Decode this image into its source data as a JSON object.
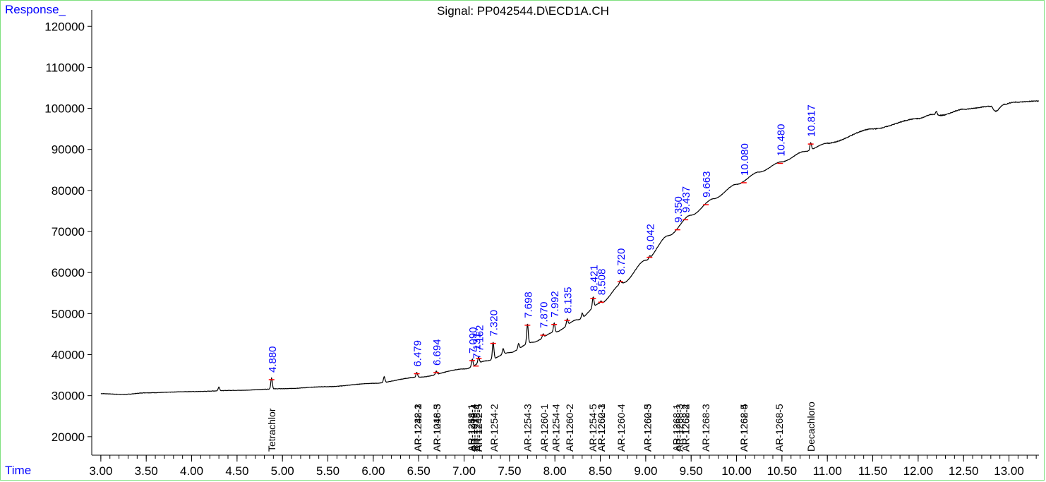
{
  "chart_data": {
    "type": "line",
    "title": "Signal: PP042544.D\\ECD1A.CH",
    "ylabel": "Response_",
    "xlabel": "Time",
    "xlim": [
      2.9,
      13.33
    ],
    "ylim": [
      15500,
      124000
    ],
    "y_ticks": [
      20000,
      30000,
      40000,
      50000,
      60000,
      70000,
      80000,
      90000,
      100000,
      110000,
      120000
    ],
    "x_ticks": [
      3.0,
      3.5,
      4.0,
      4.5,
      5.0,
      5.5,
      6.0,
      6.5,
      7.0,
      7.5,
      8.0,
      8.5,
      9.0,
      9.5,
      10.0,
      10.5,
      11.0,
      11.5,
      12.0,
      12.5,
      13.0
    ],
    "x_tick_labels": [
      "3.00",
      "3.50",
      "4.00",
      "4.50",
      "5.00",
      "5.50",
      "6.00",
      "6.50",
      "7.00",
      "7.50",
      "8.00",
      "8.50",
      "9.00",
      "9.50",
      "10.00",
      "10.50",
      "11.00",
      "11.50",
      "12.00",
      "12.50",
      "13.00"
    ],
    "baseline": {
      "x": [
        3.0,
        3.25,
        3.5,
        4.0,
        4.5,
        5.0,
        5.5,
        6.0,
        6.5,
        7.0,
        7.25,
        7.5,
        7.75,
        8.0,
        8.25,
        8.5,
        8.75,
        9.0,
        9.25,
        9.5,
        9.75,
        10.0,
        10.25,
        10.5,
        10.75,
        11.0,
        11.5,
        12.0,
        12.15,
        12.25,
        12.5,
        12.8,
        12.85,
        12.95,
        13.05,
        13.33
      ],
      "y": [
        30500,
        30300,
        30700,
        31000,
        31300,
        31700,
        32200,
        33000,
        34500,
        36500,
        38500,
        40500,
        43000,
        45500,
        48500,
        52500,
        57500,
        63000,
        69000,
        74000,
        78000,
        81500,
        84500,
        87000,
        89500,
        91500,
        95000,
        97500,
        98500,
        98300,
        99800,
        100500,
        99300,
        101000,
        101500,
        101800
      ]
    },
    "peaks": [
      {
        "x": 4.3,
        "h": 900
      },
      {
        "x": 4.88,
        "h": 2600
      },
      {
        "x": 6.12,
        "h": 1400
      },
      {
        "x": 6.479,
        "h": 1200
      },
      {
        "x": 6.694,
        "h": 800
      },
      {
        "x": 7.09,
        "h": 1800
      },
      {
        "x": 7.16,
        "h": 1500
      },
      {
        "x": 7.32,
        "h": 4200
      },
      {
        "x": 7.43,
        "h": 1400
      },
      {
        "x": 7.6,
        "h": 1300
      },
      {
        "x": 7.698,
        "h": 4800
      },
      {
        "x": 7.87,
        "h": 900
      },
      {
        "x": 7.992,
        "h": 2200
      },
      {
        "x": 8.135,
        "h": 1500
      },
      {
        "x": 8.3,
        "h": 1200
      },
      {
        "x": 8.421,
        "h": 2500
      },
      {
        "x": 8.508,
        "h": 600
      },
      {
        "x": 8.72,
        "h": 800
      },
      {
        "x": 9.042,
        "h": 600
      },
      {
        "x": 10.817,
        "h": 1800
      },
      {
        "x": 12.2,
        "h": 900
      }
    ],
    "rt_labels": [
      {
        "x": 4.88,
        "label": "4.880"
      },
      {
        "x": 6.479,
        "label": "6.479"
      },
      {
        "x": 6.694,
        "label": "6.694"
      },
      {
        "x": 7.09,
        "label": "7.090"
      },
      {
        "x": 7.13,
        "label": "7.131"
      },
      {
        "x": 7.162,
        "label": "7.162"
      },
      {
        "x": 7.32,
        "label": "7.320"
      },
      {
        "x": 7.698,
        "label": "7.698"
      },
      {
        "x": 7.87,
        "label": "7.870"
      },
      {
        "x": 7.992,
        "label": "7.992"
      },
      {
        "x": 8.135,
        "label": "8.135"
      },
      {
        "x": 8.421,
        "label": "8.421"
      },
      {
        "x": 8.508,
        "label": "8.508"
      },
      {
        "x": 8.72,
        "label": "8.720"
      },
      {
        "x": 9.042,
        "label": "9.042"
      },
      {
        "x": 9.35,
        "label": "9.350"
      },
      {
        "x": 9.437,
        "label": "9.437"
      },
      {
        "x": 9.663,
        "label": "9.663"
      },
      {
        "x": 10.08,
        "label": "10.080"
      },
      {
        "x": 10.48,
        "label": "10.480"
      },
      {
        "x": 10.817,
        "label": "10.817"
      }
    ],
    "compound_labels": [
      {
        "x": 4.88,
        "label": "Tetrachlor"
      },
      {
        "x": 6.49,
        "label": "AR-1232-1"
      },
      {
        "x": 6.49,
        "label": "AR-1242-2"
      },
      {
        "x": 6.49,
        "label": "AR-1248-3"
      },
      {
        "x": 6.7,
        "label": "AR-1016-3"
      },
      {
        "x": 6.7,
        "label": "AR-1248-5"
      },
      {
        "x": 7.08,
        "label": "AR-1254-1"
      },
      {
        "x": 7.08,
        "label": "AR-1248-1"
      },
      {
        "x": 7.11,
        "label": "AR-1016-4"
      },
      {
        "x": 7.14,
        "label": "AR-1248-4"
      },
      {
        "x": 7.16,
        "label": "AR-1242-5"
      },
      {
        "x": 7.33,
        "label": "AR-1254-2"
      },
      {
        "x": 7.7,
        "label": "AR-1254-3"
      },
      {
        "x": 7.88,
        "label": "AR-1260-1"
      },
      {
        "x": 8.01,
        "label": "AR-1254-4"
      },
      {
        "x": 8.16,
        "label": "AR-1260-2"
      },
      {
        "x": 8.42,
        "label": "AR-1254-5"
      },
      {
        "x": 8.51,
        "label": "AR-1260-3"
      },
      {
        "x": 8.51,
        "label": "AR-1262-1"
      },
      {
        "x": 8.73,
        "label": "AR-1260-4"
      },
      {
        "x": 9.02,
        "label": "AR-1260-5"
      },
      {
        "x": 9.02,
        "label": "AR-1262-3"
      },
      {
        "x": 9.34,
        "label": "AR-1268-1"
      },
      {
        "x": 9.37,
        "label": "AR-1268-3"
      },
      {
        "x": 9.44,
        "label": "AR-1268-2"
      },
      {
        "x": 9.44,
        "label": "AR-1262-4"
      },
      {
        "x": 9.66,
        "label": "AR-1268-3"
      },
      {
        "x": 10.08,
        "label": "AR-1262-5"
      },
      {
        "x": 10.08,
        "label": "AR-1268-4"
      },
      {
        "x": 10.47,
        "label": "AR-1268-5"
      },
      {
        "x": 10.82,
        "label": "Decachloro"
      }
    ]
  },
  "colors": {
    "axis_text": "#0000ff",
    "rt_label": "#0000ff",
    "trace": "#000000",
    "peak_fill": "#ff0000",
    "frame": "#7fe07f"
  }
}
